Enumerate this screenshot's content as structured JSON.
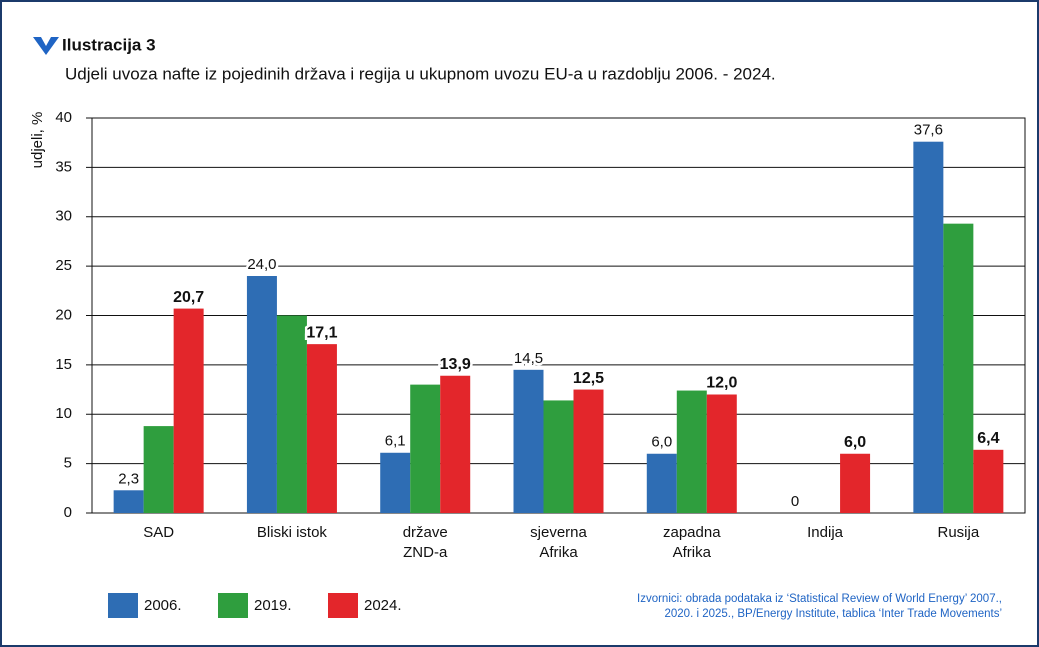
{
  "chart_data": {
    "type": "bar",
    "title": "Ilustracija 3",
    "subtitle": "Udjeli uvoza nafte iz pojedinih država i regija u ukupnom uvozu EU-a u razdoblju 2006. - 2024.",
    "y_label": "udjeli, %",
    "categories": [
      "SAD",
      "Bliski istok",
      "države\nZND-a",
      "sjeverna\nAfrika",
      "zapadna\nAfrika",
      "Indija",
      "Rusija"
    ],
    "series": [
      {
        "name": "2006.",
        "color": "#2e6db4",
        "values": [
          2.3,
          24.0,
          6.1,
          14.5,
          6.0,
          0,
          37.6
        ],
        "value_labels": [
          "2,3",
          "24,0",
          "6,1",
          "14,5",
          "6,0",
          "0",
          "37,6"
        ]
      },
      {
        "name": "2019.",
        "color": "#2f9e3e",
        "values": [
          8.8,
          20.0,
          13.0,
          11.4,
          12.4,
          null,
          29.3
        ]
      },
      {
        "name": "2024.",
        "color": "#e3262b",
        "values": [
          20.7,
          17.1,
          13.9,
          12.5,
          12.0,
          6.0,
          6.4
        ],
        "value_labels": [
          "20,7",
          "17,1",
          "13,9",
          "12,5",
          "12,0",
          "6,0",
          "6,4"
        ]
      }
    ],
    "ylim": [
      0,
      40
    ],
    "yticks": [
      0,
      5,
      10,
      15,
      20,
      25,
      30,
      35,
      40
    ],
    "grid": true,
    "source": [
      "Izvornici: obrada podataka iz ‘Statistical Review of World Energy’ 2007.,",
      "2020. i 2025., BP/Energy Institute, tablica ‘Inter Trade Movements’"
    ]
  }
}
